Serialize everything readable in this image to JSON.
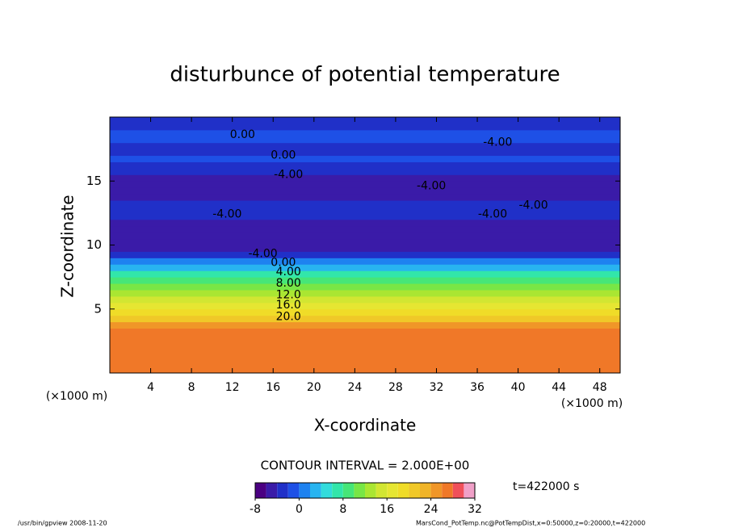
{
  "chart_data": {
    "type": "contour",
    "title": "disturbunce of potential temperature",
    "xlabel": "X-coordinate",
    "ylabel": "Z-coordinate",
    "xunit": "(×1000 m)",
    "yunit": "(×1000 m)",
    "xlim": [
      0,
      50
    ],
    "xticks": [
      4,
      8,
      12,
      16,
      20,
      24,
      28,
      32,
      36,
      40,
      44,
      48
    ],
    "ylim": [
      0,
      20
    ],
    "yticks": [
      5,
      10,
      15
    ],
    "field": {
      "z": [
        0.25,
        0.75,
        1.25,
        1.75,
        2.25,
        2.75,
        3.25,
        3.75,
        4.25,
        4.75,
        5.25,
        5.75,
        6.25,
        6.75,
        7.25,
        7.75,
        8.25,
        8.75,
        9.25,
        9.75,
        10.25,
        10.75,
        11.25,
        11.75,
        12.25,
        12.75,
        13.25,
        13.75,
        14.25,
        14.75,
        15.25,
        15.75,
        16.25,
        16.75,
        17.25,
        17.75,
        18.25,
        18.75,
        19.25,
        19.75
      ],
      "values": [
        26,
        26,
        26,
        26,
        26,
        26,
        26,
        25,
        21,
        19,
        17,
        15,
        13,
        11,
        9,
        6,
        3,
        0,
        -3,
        -5,
        -6,
        -6,
        -5,
        -5,
        -4,
        -4,
        -4,
        -5,
        -5,
        -6,
        -5,
        -3,
        -3,
        -2,
        -3,
        -3,
        -2,
        -2,
        -3,
        -4
      ]
    },
    "contour_labels": [
      {
        "text": "0.00",
        "x": 13,
        "z": 18.6
      },
      {
        "text": "0.00",
        "x": 17,
        "z": 17
      },
      {
        "text": "-4.00",
        "x": 17.5,
        "z": 15.5
      },
      {
        "text": "-4.00",
        "x": 31.5,
        "z": 14.6
      },
      {
        "text": "-4.00",
        "x": 11.5,
        "z": 12.4
      },
      {
        "text": "-4.00",
        "x": 38,
        "z": 18
      },
      {
        "text": "-4.00",
        "x": 37.5,
        "z": 12.4
      },
      {
        "text": "-4.00",
        "x": 41.5,
        "z": 13.1
      },
      {
        "text": "-4.00",
        "x": 15,
        "z": 9.3
      },
      {
        "text": "0.00",
        "x": 17,
        "z": 8.6
      },
      {
        "text": "4.00",
        "x": 17.5,
        "z": 7.9
      },
      {
        "text": "8.00",
        "x": 17.5,
        "z": 7
      },
      {
        "text": "12.0",
        "x": 17.5,
        "z": 6.1
      },
      {
        "text": "16.0",
        "x": 17.5,
        "z": 5.3
      },
      {
        "text": "20.0",
        "x": 17.5,
        "z": 4.4
      }
    ],
    "contour_interval": "CONTOUR INTERVAL = 2.000E+00",
    "time_label": "t=422000 s",
    "colorbar": {
      "levels": [
        -8,
        -6,
        -4,
        -2,
        0,
        2,
        4,
        6,
        8,
        10,
        12,
        14,
        16,
        18,
        20,
        22,
        24,
        26,
        28,
        30,
        32
      ],
      "colors": [
        "#4b0082",
        "#3a1ba8",
        "#2030c8",
        "#1e50e6",
        "#1e82f0",
        "#28b4f0",
        "#32dcdc",
        "#32e6aa",
        "#46e678",
        "#78e646",
        "#aae632",
        "#d2e632",
        "#e6e632",
        "#f0dc28",
        "#f0c828",
        "#f0b428",
        "#f09628",
        "#f07828",
        "#f0505a",
        "#f0a0c8"
      ],
      "ticks": [
        -8,
        0,
        8,
        16,
        24,
        32
      ]
    },
    "footer_left": "/usr/bin/gpview  2008-11-20",
    "footer_right": "MarsCond_PotTemp.nc@PotTempDist,x=0:50000,z=0:20000,t=422000"
  }
}
